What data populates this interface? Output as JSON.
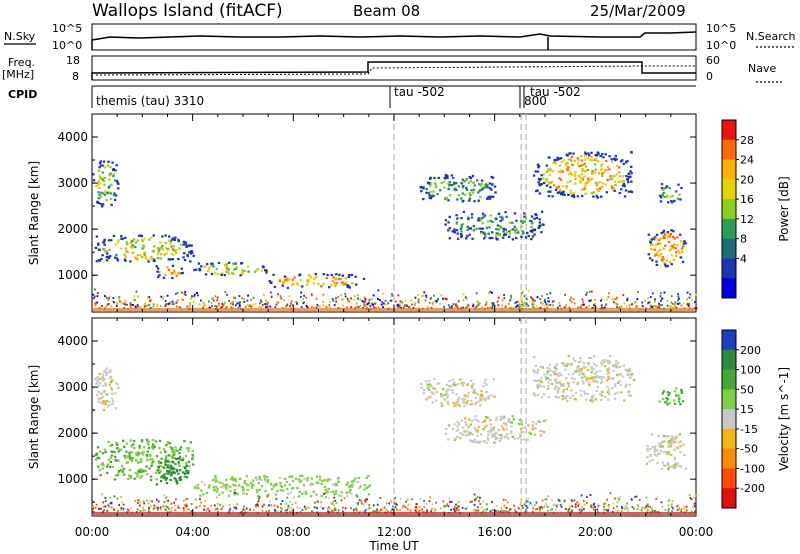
{
  "header": {
    "title": "Wallops Island (fitACF)",
    "beam": "Beam 08",
    "date": "25/Mar/2009"
  },
  "noise_panel": {
    "left_label": "N.Sky",
    "right_label": "N.Search",
    "left_ticks": [
      "10^5",
      "10^0"
    ],
    "right_ticks": [
      "10^5",
      "10^0"
    ]
  },
  "freq_panel": {
    "left_label_line1": "Freq.",
    "left_label_line2": "[MHz]",
    "right_label": "Nave",
    "left_ticks": [
      "18",
      "8"
    ],
    "right_ticks": [
      "60",
      "0"
    ]
  },
  "cpid_panel": {
    "label": "CPID",
    "segments": [
      {
        "start_hour": 0.0,
        "text": "themis (tau) 3310"
      },
      {
        "start_hour": 12.0,
        "text": "tau -502"
      },
      {
        "start_hour": 17.0,
        "text": "800"
      },
      {
        "start_hour": 17.1,
        "text": "tau -502"
      }
    ]
  },
  "power_colorbar": {
    "label": "Power [dB]",
    "ticks": [
      "28",
      "24",
      "20",
      "16",
      "12",
      "8",
      "4"
    ],
    "colors": [
      "#e8150f",
      "#ff6a00",
      "#ffb000",
      "#e5d400",
      "#8cce20",
      "#2f9e55",
      "#1c6f7a",
      "#1b36b0",
      "#0000e0"
    ]
  },
  "velocity_colorbar": {
    "label": "Velocity [m s^-1]",
    "ticks": [
      "200",
      "100",
      "50",
      "15",
      "-15",
      "-50",
      "-100",
      "-200"
    ],
    "colors": [
      "#1c3fc0",
      "#2c8a3c",
      "#44a832",
      "#7ad240",
      "#c8c8c4",
      "#f4b418",
      "#ff8c00",
      "#ff4a00",
      "#e01010"
    ]
  },
  "chart_data": [
    {
      "type": "heatmap",
      "name": "power",
      "ylabel": "Slant Range [km]",
      "yticks": [
        "1000",
        "2000",
        "3000",
        "4000"
      ],
      "ylim": [
        200,
        4500
      ],
      "xlim": [
        0,
        24
      ],
      "vertical_markers_hours": [
        12.0,
        17.05,
        17.25
      ],
      "blobs": [
        {
          "t0": 0.0,
          "t1": 1.0,
          "r0": 2500,
          "r1": 3500,
          "value": 12
        },
        {
          "t0": 0.1,
          "t1": 4.0,
          "r0": 1300,
          "r1": 1900,
          "value": 16
        },
        {
          "t0": 2.5,
          "t1": 3.6,
          "r0": 950,
          "r1": 1250,
          "value": 24
        },
        {
          "t0": 4.0,
          "t1": 7.0,
          "r0": 1000,
          "r1": 1300,
          "value": 16
        },
        {
          "t0": 7.0,
          "t1": 10.8,
          "r0": 750,
          "r1": 1050,
          "value": 22
        },
        {
          "t0": 13.0,
          "t1": 16.0,
          "r0": 2600,
          "r1": 3200,
          "value": 10
        },
        {
          "t0": 14.0,
          "t1": 18.0,
          "r0": 1800,
          "r1": 2400,
          "value": 8
        },
        {
          "t0": 17.5,
          "t1": 21.5,
          "r0": 2700,
          "r1": 3700,
          "value": 20
        },
        {
          "t0": 22.0,
          "t1": 23.6,
          "r0": 1200,
          "r1": 2000,
          "value": 22
        },
        {
          "t0": 22.5,
          "t1": 23.5,
          "r0": 2600,
          "r1": 3000,
          "value": 12
        }
      ]
    },
    {
      "type": "heatmap",
      "name": "velocity",
      "ylabel": "Slant Range [km]",
      "yticks": [
        "1000",
        "2000",
        "3000",
        "4000"
      ],
      "ylim": [
        200,
        4500
      ],
      "xlim": [
        0,
        24
      ],
      "vertical_markers_hours": [
        12.0,
        17.05,
        17.25
      ],
      "blobs": [
        {
          "t0": 0.0,
          "t1": 1.0,
          "r0": 2500,
          "r1": 3500,
          "value": 0
        },
        {
          "t0": 0.1,
          "t1": 4.0,
          "r0": 1000,
          "r1": 1900,
          "value": 50
        },
        {
          "t0": 2.5,
          "t1": 3.8,
          "r0": 900,
          "r1": 1500,
          "value": 150
        },
        {
          "t0": 4.0,
          "t1": 11.0,
          "r0": 650,
          "r1": 1100,
          "value": 30
        },
        {
          "t0": 13.0,
          "t1": 16.0,
          "r0": 2600,
          "r1": 3200,
          "value": 0
        },
        {
          "t0": 14.0,
          "t1": 18.0,
          "r0": 1800,
          "r1": 2400,
          "value": 0
        },
        {
          "t0": 17.5,
          "t1": 21.5,
          "r0": 2700,
          "r1": 3700,
          "value": 0
        },
        {
          "t0": 22.0,
          "t1": 23.6,
          "r0": 1200,
          "r1": 2000,
          "value": 0
        },
        {
          "t0": 22.5,
          "t1": 23.5,
          "r0": 2600,
          "r1": 3000,
          "value": 60
        }
      ]
    }
  ],
  "x_axis": {
    "ticks": [
      "00:00",
      "04:00",
      "08:00",
      "12:00",
      "16:00",
      "20:00",
      "00:00"
    ],
    "label": "Time UT"
  }
}
